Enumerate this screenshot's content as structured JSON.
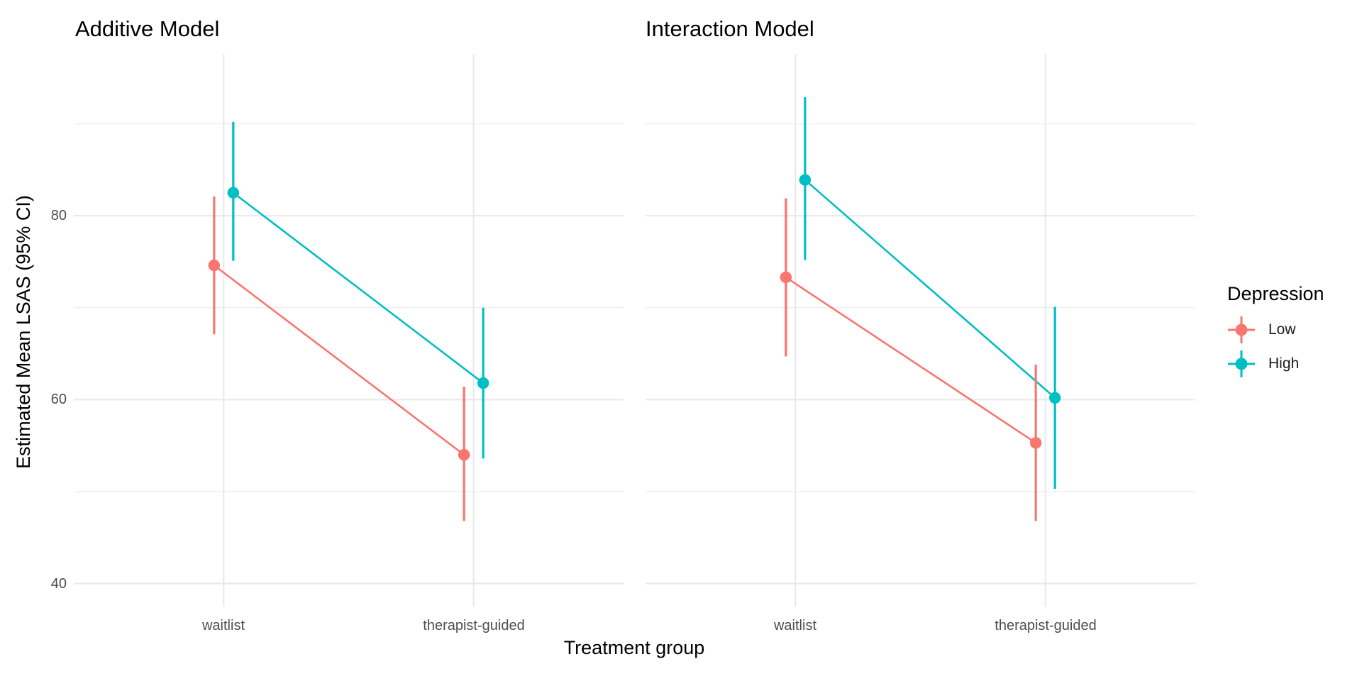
{
  "chart_data": {
    "type": "pointrange-line",
    "title": "",
    "xlabel": "Treatment group",
    "ylabel": "Estimated Mean LSAS (95% CI)",
    "categories": [
      "waitlist",
      "therapist-guided"
    ],
    "yticks": [
      40,
      60,
      80
    ],
    "yminor": [
      50,
      70,
      90
    ],
    "ylim": [
      37.5,
      97.6
    ],
    "grid": true,
    "facets": [
      {
        "title": "Additive Model",
        "series": [
          {
            "name": "Low",
            "color": "#F8766D",
            "points": [
              {
                "category": "waitlist",
                "mean": 74.6,
                "lower": 67.1,
                "upper": 82.1
              },
              {
                "category": "therapist-guided",
                "mean": 54.0,
                "lower": 46.8,
                "upper": 61.4
              }
            ]
          },
          {
            "name": "High",
            "color": "#00BFC4",
            "points": [
              {
                "category": "waitlist",
                "mean": 82.5,
                "lower": 75.1,
                "upper": 90.2
              },
              {
                "category": "therapist-guided",
                "mean": 61.8,
                "lower": 53.6,
                "upper": 70.0
              }
            ]
          }
        ]
      },
      {
        "title": "Interaction Model",
        "series": [
          {
            "name": "Low",
            "color": "#F8766D",
            "points": [
              {
                "category": "waitlist",
                "mean": 73.3,
                "lower": 64.7,
                "upper": 81.9
              },
              {
                "category": "therapist-guided",
                "mean": 55.3,
                "lower": 46.8,
                "upper": 63.8
              }
            ]
          },
          {
            "name": "High",
            "color": "#00BFC4",
            "points": [
              {
                "category": "waitlist",
                "mean": 83.9,
                "lower": 75.2,
                "upper": 92.9
              },
              {
                "category": "therapist-guided",
                "mean": 60.2,
                "lower": 50.3,
                "upper": 70.1
              }
            ]
          }
        ]
      }
    ],
    "legend": {
      "position": "right",
      "title": "Depression",
      "entries": [
        {
          "label": "Low",
          "color": "#F8766D"
        },
        {
          "label": "High",
          "color": "#00BFC4"
        }
      ]
    },
    "colors": {
      "gridline_major": "#E8E8E8",
      "gridline_minor": "#EFEFEF",
      "tick_text": "#4D4D4D",
      "title_text": "#000000",
      "background": "#FFFFFF"
    }
  }
}
